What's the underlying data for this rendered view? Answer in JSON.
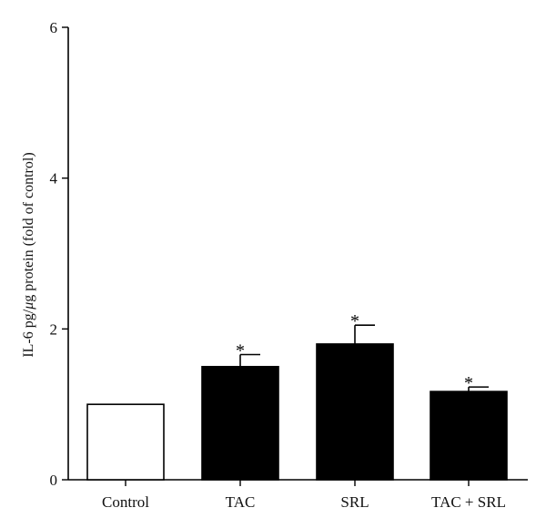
{
  "chart_data": {
    "type": "bar",
    "title": "",
    "xlabel": "",
    "ylabel_parts": [
      "IL-6 pg/",
      "μ",
      "g protein (fold of control)"
    ],
    "ylim": [
      0,
      6
    ],
    "yticks": [
      0,
      2,
      4,
      6
    ],
    "grid": false,
    "categories": [
      "Control",
      "TAC",
      "SRL",
      "TAC + SRL"
    ],
    "values": [
      1.0,
      1.5,
      1.8,
      1.17
    ],
    "errors": [
      0.0,
      0.16,
      0.25,
      0.06
    ],
    "significance": [
      "",
      "*",
      "*",
      "*"
    ],
    "colors": {
      "bar_fill": [
        "#ffffff",
        "#000000",
        "#000000",
        "#000000"
      ],
      "bar_stroke": "#000000"
    }
  }
}
